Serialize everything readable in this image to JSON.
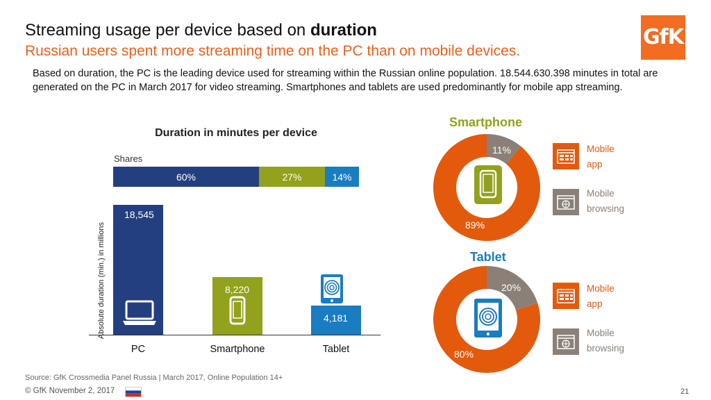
{
  "header": {
    "title_prefix": "Streaming usage per device based on ",
    "title_bold": "duration",
    "subtitle": "Russian users spent more streaming time on the PC than on mobile devices.",
    "intro": "Based on duration, the PC is the leading device used for streaming within the Russian online population. 18.544.630.398 minutes in total are generated on the PC in March 2017 for video streaming. Smartphones and tablets are used predominantly for mobile app streaming."
  },
  "logo": {
    "text": "GfK"
  },
  "chart_data": [
    {
      "type": "bar",
      "title": "Duration in minutes per device",
      "categories": [
        "PC",
        "Smartphone",
        "Tablet"
      ],
      "values": [
        18545,
        8220,
        4181
      ],
      "value_labels": [
        "18,545",
        "8,220",
        "4,181"
      ],
      "ylabel": "Absolute duration (min.) in millions",
      "xlabel": "",
      "ylim": [
        0,
        19000
      ],
      "colors": [
        "#243f7f",
        "#93a11c",
        "#1a7cc1"
      ],
      "icons": [
        "laptop-icon",
        "smartphone-icon",
        "tablet-icon"
      ],
      "shares": {
        "label": "Shares",
        "values": [
          60,
          27,
          14
        ],
        "labels": [
          "60%",
          "27%",
          "14%"
        ]
      }
    },
    {
      "type": "pie",
      "title": "Smartphone",
      "title_color": "#93a11c",
      "categories": [
        "Mobile app",
        "Mobile browsing"
      ],
      "values": [
        89,
        11
      ],
      "labels": [
        "89%",
        "11%"
      ],
      "colors": [
        "#e35a0d",
        "#8a8078"
      ],
      "center_icon": "smartphone-icon"
    },
    {
      "type": "pie",
      "title": "Tablet",
      "title_color": "#1a7cc1",
      "categories": [
        "Mobile app",
        "Mobile browsing"
      ],
      "values": [
        80,
        20
      ],
      "labels": [
        "80%",
        "20%"
      ],
      "colors": [
        "#e35a0d",
        "#8a8078"
      ],
      "center_icon": "tablet-icon"
    }
  ],
  "legend": {
    "app_line1": "Mobile",
    "app_line2": "app",
    "browse_line1": "Mobile",
    "browse_line2": "browsing"
  },
  "footer": {
    "source": "Source: GfK Crossmedia Panel Russia | March 2017, Online Population 14+",
    "copyright": "© GfK November 2, 2017",
    "page": "21"
  }
}
